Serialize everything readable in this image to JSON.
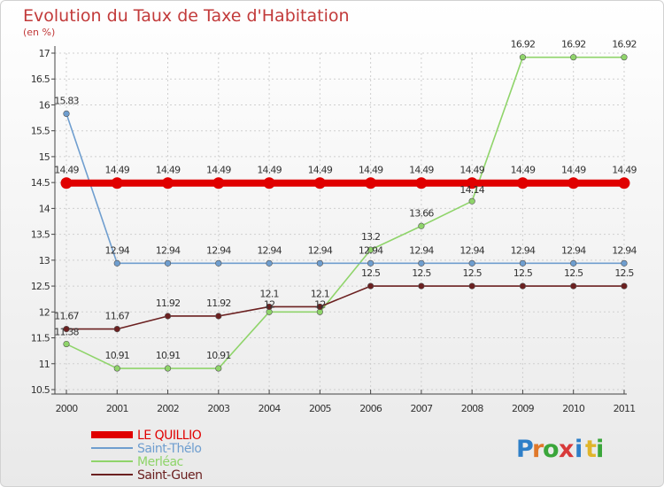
{
  "chart_data": {
    "type": "line",
    "title": "Evolution du Taux de Taxe d'Habitation",
    "subtitle": "(en %)",
    "categories": [
      "2000",
      "2001",
      "2002",
      "2003",
      "2004",
      "2005",
      "2006",
      "2007",
      "2008",
      "2009",
      "2010",
      "2011"
    ],
    "yticks": [
      "10.5",
      "11",
      "11.5",
      "12",
      "12.5",
      "13",
      "13.5",
      "14",
      "14.5",
      "15",
      "15.5",
      "16",
      "16.5",
      "17"
    ],
    "ylim": [
      10.5,
      17
    ],
    "series": [
      {
        "name": "LE QUILLIO",
        "color": "#e00000",
        "values": [
          14.49,
          14.49,
          14.49,
          14.49,
          14.49,
          14.49,
          14.49,
          14.49,
          14.49,
          14.49,
          14.49,
          14.49
        ],
        "labels": [
          "14.49",
          "14.49",
          "14.49",
          "14.49",
          "14.49",
          "14.49",
          "14.49",
          "14.49",
          "14.49",
          "14.49",
          "14.49",
          "14.49"
        ]
      },
      {
        "name": "Saint-Thélo",
        "color": "#6f9ecf",
        "values": [
          15.83,
          12.94,
          12.94,
          12.94,
          12.94,
          12.94,
          12.94,
          12.94,
          12.94,
          12.94,
          12.94,
          12.94
        ],
        "labels": [
          "15.83",
          "12.94",
          "12.94",
          "12.94",
          "12.94",
          "12.94",
          "12.94",
          "12.94",
          "12.94",
          "12.94",
          "12.94",
          "12.94"
        ]
      },
      {
        "name": "Merléac",
        "color": "#8fd46a",
        "values": [
          11.38,
          10.91,
          10.91,
          10.91,
          12,
          12,
          13.2,
          13.66,
          14.14,
          16.92,
          16.92,
          16.92
        ],
        "labels": [
          "11.38",
          "10.91",
          "10.91",
          "10.91",
          "12",
          "12",
          "13.2",
          "13.66",
          "14.14",
          "16.92",
          "16.92",
          "16.92"
        ]
      },
      {
        "name": "Saint-Guen",
        "color": "#6b2020",
        "values": [
          11.67,
          11.67,
          11.92,
          11.92,
          12.1,
          12.1,
          12.5,
          12.5,
          12.5,
          12.5,
          12.5,
          12.5
        ],
        "labels": [
          "11.67",
          "11.67",
          "11.92",
          "11.92",
          "12.1",
          "12.1",
          "12.5",
          "12.5",
          "12.5",
          "12.5",
          "12.5",
          "12.5"
        ]
      }
    ]
  },
  "logo": {
    "letters": [
      "P",
      "r",
      "o",
      "x",
      "i",
      "t",
      "i"
    ]
  }
}
